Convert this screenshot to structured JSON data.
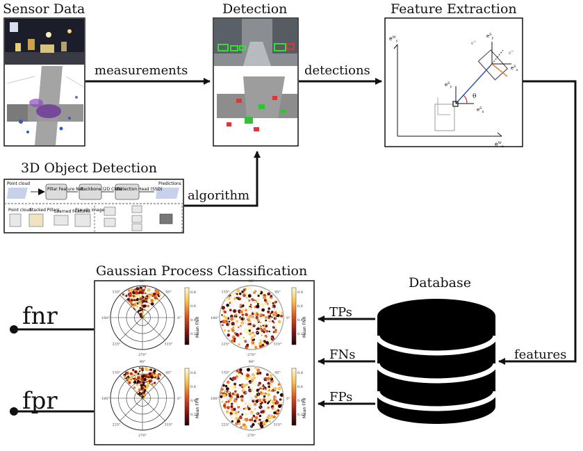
{
  "titles": {
    "sensor_data": "Sensor Data",
    "detection": "Detection",
    "feature_extraction": "Feature Extraction",
    "object_detection": "3D Object Detection",
    "gpc": "Gaussian Process Classification",
    "database": "Database"
  },
  "edges": {
    "measurements": "measurements",
    "detections": "detections",
    "algorithm": "algorithm",
    "features": "features",
    "tps": "TPs",
    "fns": "FNs",
    "fps": "FPs"
  },
  "outputs": {
    "fnr": "fnr",
    "fpr": "fpr"
  },
  "pipeline": {
    "point_cloud": "Point cloud",
    "pillar_net": "Pillar Feature Net",
    "backbone": "Backbone (2D CNN)",
    "detection_head": "Detection Head (SSD)",
    "predictions": "Predictions",
    "stacked_pillars": "Stacked Pillars",
    "learned_features": "Learned Features",
    "pseudo_image": "Pseudo image",
    "point_cloud_sub": "Point cloud"
  },
  "polar": {
    "angle_labels": [
      "90°",
      "45°",
      "0°",
      "315°",
      "270°",
      "225°",
      "180°",
      "135°"
    ],
    "fnr_colorbar_label": "Mean FNR",
    "fpr_colorbar_label": "Mean FPR",
    "colorbar_ticks": [
      "0.8",
      "0.6",
      "0.4",
      "0.2"
    ]
  },
  "feature_axes": {
    "world_y": "e_y^W",
    "world_x": "e_x^W",
    "theta": "θ"
  }
}
